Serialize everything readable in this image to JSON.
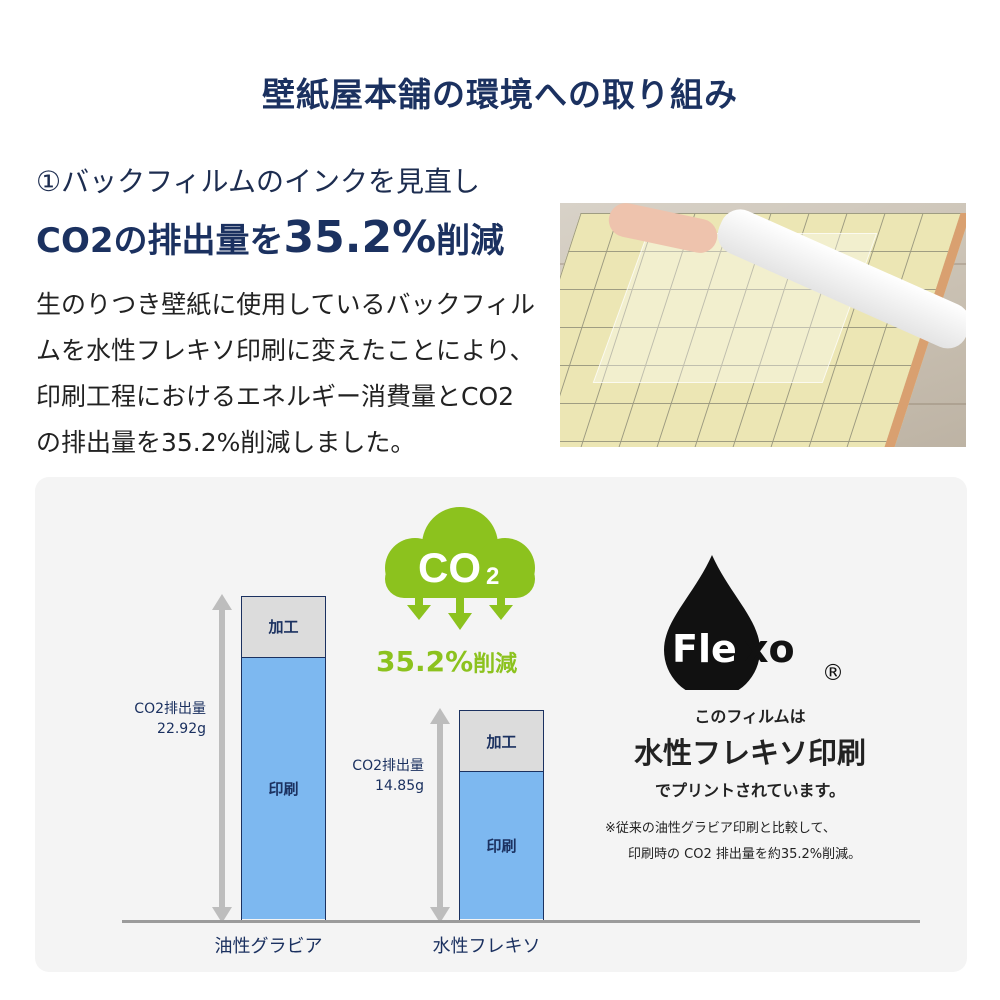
{
  "title": "壁紙屋本舗の環境への取り組み",
  "section": {
    "subtitle": "①バックフィルムのインクを見直し",
    "headline_pre": "CO2の排出量を",
    "headline_value": "35.2%",
    "headline_post": "削減",
    "body": "生のりつき壁紙に使用しているバックフィルムを水性フレキソ印刷に変えたことにより、印刷工程におけるエネルギー消費量とCO2の排出量を35.2%削減しました。"
  },
  "photo": {
    "description_icon": "wallpaper-roll-photo"
  },
  "cloud": {
    "label_main": "CO",
    "label_sub": "2",
    "color": "#8cc21e",
    "reduction_value": "35.2%",
    "reduction_suffix": "削減"
  },
  "flexo": {
    "logo_text": "Flexo",
    "registered": "®",
    "line1": "このフィルムは",
    "line2": "水性フレキソ印刷",
    "line3": "でプリントされています。",
    "note1": "※従来の油性グラビア印刷と比較して、",
    "note2": "印刷時の CO2 排出量を約35.2%削減。"
  },
  "chart_data": {
    "type": "bar",
    "stacked": true,
    "categories": [
      "油性グラビア",
      "水性フレキソ"
    ],
    "totals": [
      22.92,
      14.85
    ],
    "total_labels": [
      {
        "line1": "CO2排出量",
        "line2": "22.92g"
      },
      {
        "line1": "CO2排出量",
        "line2": "14.85g"
      }
    ],
    "unit": "g",
    "series": [
      {
        "name": "印刷",
        "values": [
          18.62,
          10.55
        ],
        "color": "#7db8f0"
      },
      {
        "name": "加工",
        "values": [
          4.3,
          4.3
        ],
        "color": "#dcdcdc"
      }
    ],
    "ylim": [
      0,
      22.92
    ],
    "grid": false
  }
}
